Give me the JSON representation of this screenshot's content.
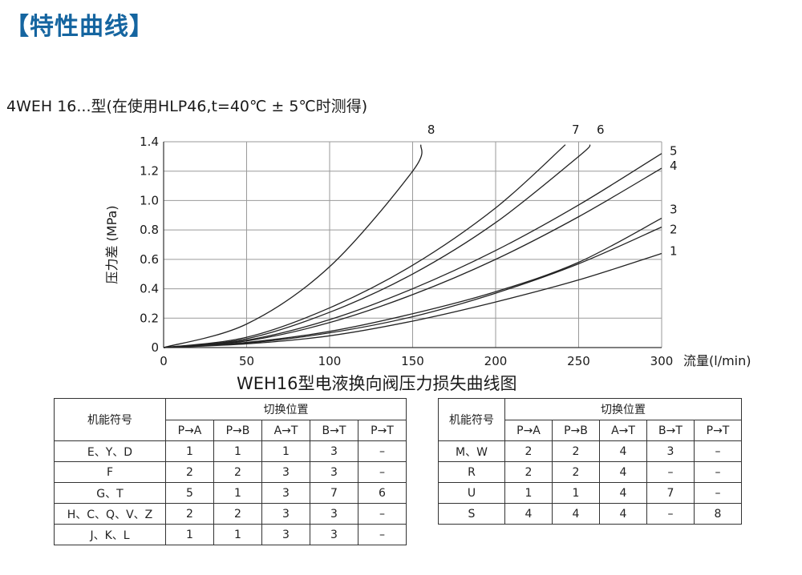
{
  "heading": "【特性曲线】",
  "subtitle": "4WEH  16...型(在使用HLP46,t=40℃ ± 5℃时测得)",
  "chart_data": {
    "type": "line",
    "title": "WEH16型电液换向阀压力损失曲线图",
    "xlabel": "流量(l/min)",
    "ylabel": "压力差 (MPa)",
    "xlim": [
      0,
      300
    ],
    "ylim": [
      0,
      1.4
    ],
    "x_ticks": [
      "0",
      "50",
      "100",
      "150",
      "200",
      "250",
      "300"
    ],
    "y_ticks": [
      "0",
      "0.2",
      "0.4",
      "0.6",
      "0.8",
      "1.0",
      "1.2",
      "1.4"
    ],
    "grid": true,
    "series": [
      {
        "name": "1",
        "x": [
          0,
          50,
          100,
          150,
          200,
          250,
          300
        ],
        "y": [
          0,
          0.025,
          0.08,
          0.18,
          0.31,
          0.46,
          0.64
        ]
      },
      {
        "name": "2",
        "x": [
          0,
          50,
          100,
          150,
          200,
          250,
          300
        ],
        "y": [
          0,
          0.03,
          0.1,
          0.21,
          0.37,
          0.57,
          0.82
        ]
      },
      {
        "name": "3",
        "x": [
          0,
          50,
          100,
          150,
          200,
          250,
          300
        ],
        "y": [
          0,
          0.035,
          0.11,
          0.23,
          0.38,
          0.58,
          0.88
        ]
      },
      {
        "name": "4",
        "x": [
          0,
          50,
          100,
          150,
          200,
          250,
          300
        ],
        "y": [
          0,
          0.045,
          0.17,
          0.36,
          0.6,
          0.89,
          1.22
        ]
      },
      {
        "name": "5",
        "x": [
          0,
          50,
          100,
          150,
          200,
          250,
          300
        ],
        "y": [
          0,
          0.05,
          0.19,
          0.4,
          0.66,
          0.97,
          1.32
        ]
      },
      {
        "name": "6",
        "x": [
          0,
          50,
          100,
          150,
          200,
          250,
          257
        ],
        "y": [
          0,
          0.06,
          0.24,
          0.5,
          0.85,
          1.3,
          1.38
        ]
      },
      {
        "name": "7",
        "x": [
          0,
          50,
          100,
          150,
          200,
          242
        ],
        "y": [
          0,
          0.07,
          0.27,
          0.56,
          0.95,
          1.38
        ]
      },
      {
        "name": "8",
        "x": [
          0,
          50,
          100,
          150,
          155
        ],
        "y": [
          0,
          0.16,
          0.55,
          1.2,
          1.38
        ]
      }
    ]
  },
  "tables": [
    {
      "fn_header": "机能符号",
      "pos_header": "切换位置",
      "columns": [
        "P→A",
        "P→B",
        "A→T",
        "B→T",
        "P→T"
      ],
      "rows": [
        {
          "label": "E、Y、D",
          "cells": [
            "1",
            "1",
            "1",
            "3",
            "–"
          ]
        },
        {
          "label": "F",
          "cells": [
            "2",
            "2",
            "3",
            "3",
            "–"
          ]
        },
        {
          "label": "G、T",
          "cells": [
            "5",
            "1",
            "3",
            "7",
            "6"
          ]
        },
        {
          "label": "H、C、Q、V、Z",
          "cells": [
            "2",
            "2",
            "3",
            "3",
            "–"
          ]
        },
        {
          "label": "J、K、L",
          "cells": [
            "1",
            "1",
            "3",
            "3",
            "–"
          ]
        }
      ]
    },
    {
      "fn_header": "机能符号",
      "pos_header": "切换位置",
      "columns": [
        "P→A",
        "P→B",
        "A→T",
        "B→T",
        "P→T"
      ],
      "rows": [
        {
          "label": "M、W",
          "cells": [
            "2",
            "2",
            "4",
            "3",
            "–"
          ]
        },
        {
          "label": "R",
          "cells": [
            "2",
            "2",
            "4",
            "–",
            "–"
          ]
        },
        {
          "label": "U",
          "cells": [
            "1",
            "1",
            "4",
            "7",
            "–"
          ]
        },
        {
          "label": "S",
          "cells": [
            "4",
            "4",
            "4",
            "–",
            "8"
          ]
        }
      ]
    }
  ]
}
